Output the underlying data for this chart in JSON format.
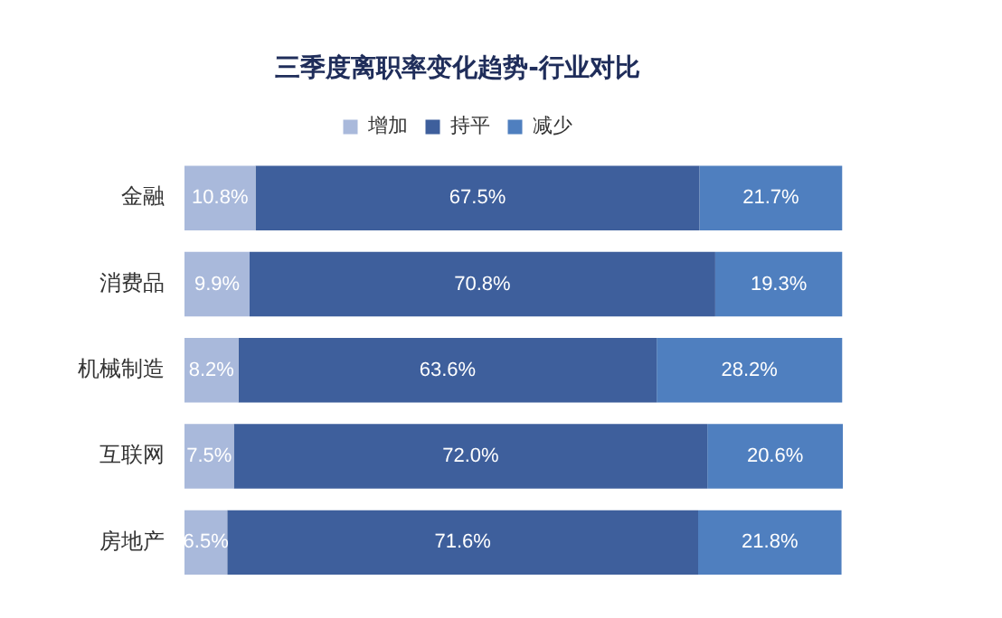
{
  "chart_data": {
    "type": "bar",
    "title": "三季度离职率变化趋势-行业对比",
    "orientation": "horizontal",
    "stacked": true,
    "categories": [
      "金融",
      "消费品",
      "机械制造",
      "互联网",
      "房地产"
    ],
    "series": [
      {
        "name": "增加",
        "color": "#a9b9db",
        "values": [
          10.8,
          9.9,
          8.2,
          7.5,
          6.5
        ],
        "value_labels": [
          "10.8%",
          "9.9%",
          "8.2%",
          "7.5%",
          "6.5%"
        ]
      },
      {
        "name": "持平",
        "color": "#3e5f9c",
        "values": [
          67.5,
          70.8,
          63.6,
          72.0,
          71.6
        ],
        "value_labels": [
          "67.5%",
          "70.8%",
          "63.6%",
          "72.0%",
          "71.6%"
        ]
      },
      {
        "name": "减少",
        "color": "#4f7fbf",
        "values": [
          21.7,
          19.3,
          28.2,
          20.6,
          21.8
        ],
        "value_labels": [
          "21.7%",
          "19.3%",
          "28.2%",
          "20.6%",
          "21.8%"
        ]
      }
    ],
    "legend": "top",
    "tick_labels": "y"
  }
}
